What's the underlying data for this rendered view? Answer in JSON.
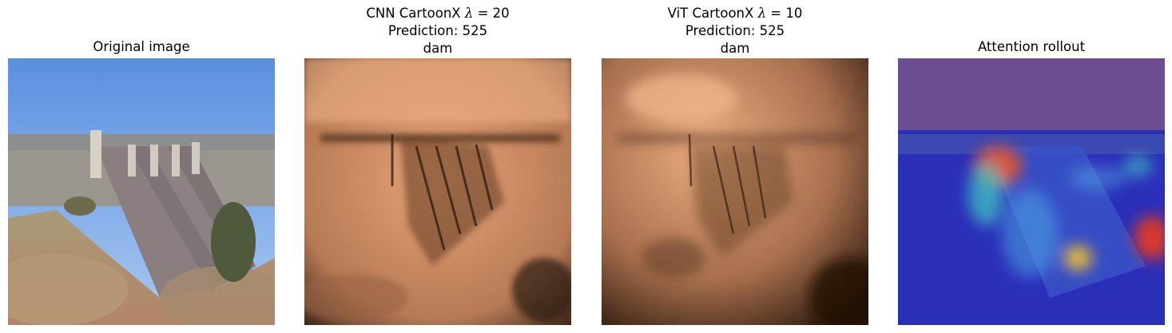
{
  "panels": [
    {
      "title_lines": [
        "Original image"
      ]
    },
    {
      "title_prefix": "CNN CartoonX",
      "lambda_symbol": "λ",
      "lambda_value": "= 20",
      "lines": [
        "Prediction: 525",
        "dam"
      ]
    },
    {
      "title_prefix": "ViT CartoonX",
      "lambda_symbol": "λ",
      "lambda_value": "= 10",
      "lines": [
        "Prediction: 525",
        "dam"
      ]
    },
    {
      "title_lines": [
        "Attention rollout"
      ]
    }
  ]
}
